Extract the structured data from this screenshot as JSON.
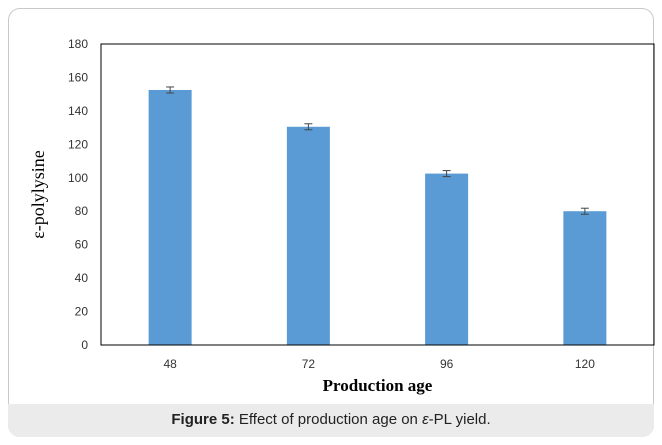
{
  "chart_data": {
    "type": "bar",
    "categories": [
      "48",
      "72",
      "96",
      "120"
    ],
    "values": [
      152.5,
      130.5,
      102.5,
      80
    ],
    "errors": [
      1.8,
      1.8,
      1.8,
      1.8
    ],
    "xlabel": "Production age",
    "ylabel": "ε-polylysine",
    "ylim": [
      0,
      180
    ],
    "yticks": [
      0,
      20,
      40,
      60,
      80,
      100,
      120,
      140,
      160,
      180
    ],
    "grid": false,
    "legend": "none",
    "bar_color": "#5b9bd5"
  },
  "caption": {
    "label": "Figure 5:",
    "text_before": " Effect of production age on ",
    "symbol": "ε",
    "text_after": "-PL yield."
  }
}
